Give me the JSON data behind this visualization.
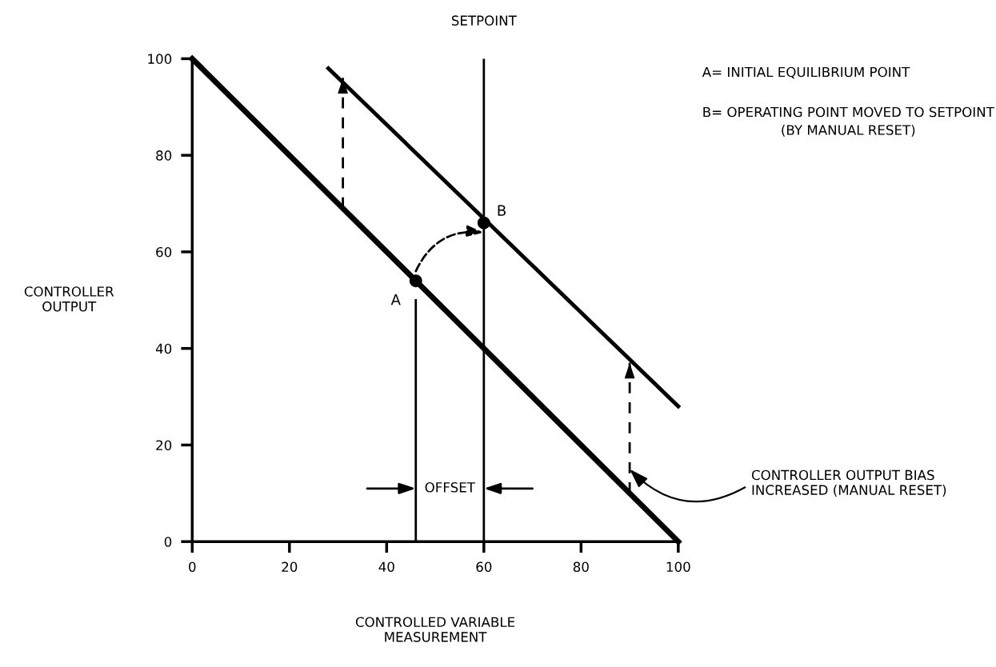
{
  "chart_data": {
    "type": "line",
    "xlabel": "CONTROLLED VARIABLE\nMEASUREMENT",
    "ylabel": "CONTROLLER\nOUTPUT",
    "xlim": [
      0,
      100
    ],
    "ylim": [
      0,
      100
    ],
    "xticks": [
      0,
      20,
      40,
      60,
      80,
      100
    ],
    "yticks": [
      0,
      20,
      40,
      60,
      80,
      100
    ],
    "grid": false,
    "legend": false,
    "series": [
      {
        "color": "#000000",
        "x": [
          0,
          100
        ],
        "values": [
          100,
          0
        ]
      },
      {
        "color": "#000000",
        "x": [
          28,
          100
        ],
        "values": [
          98,
          28
        ]
      },
      {
        "color": "#000000",
        "x": [
          46,
          46
        ],
        "values": [
          0,
          50
        ]
      },
      {
        "line_style": "dashed",
        "color": "#000000",
        "x": [
          31,
          31
        ],
        "values": [
          69,
          96
        ]
      },
      {
        "line_style": "dashed",
        "color": "#000000",
        "x": [
          90,
          90
        ],
        "values": [
          10,
          37
        ]
      },
      {
        "type": "scatter",
        "marker": "circle",
        "color": "#000000",
        "x": [
          46,
          60
        ],
        "values": [
          54,
          66
        ]
      }
    ],
    "ref_lines": [
      {
        "axis": "x",
        "value": 60,
        "label": "SETPOINT",
        "color": "#000000"
      }
    ],
    "annotations": [
      {
        "text": "A",
        "x": 46,
        "y": 54
      },
      {
        "text": "B",
        "x": 60,
        "y": 66
      },
      "OFFSET",
      {
        "text": "CONTROLLER OUTPUT BIAS\nINCREASED (MANUAL RESET)",
        "x": 90,
        "y": 15
      },
      "A= INITIAL EQUILIBRIUM POINT",
      "B= OPERATING POINT MOVED TO SETPOINT\n(BY MANUAL RESET)"
    ]
  }
}
